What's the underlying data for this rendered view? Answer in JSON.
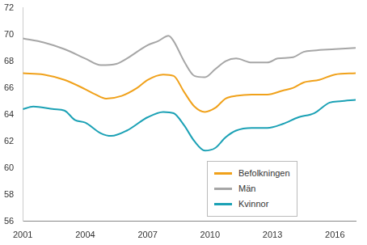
{
  "chart_data": {
    "type": "line",
    "xlim": [
      2001,
      2017
    ],
    "xticks": [
      2001,
      2004,
      2007,
      2010,
      2013,
      2016
    ],
    "ylim": [
      56,
      72
    ],
    "yticks": [
      56,
      58,
      60,
      62,
      64,
      66,
      68,
      70,
      72
    ],
    "grid": false,
    "legend": "lower right",
    "series": [
      {
        "name": "Befolkningen",
        "color": "#f0a11a",
        "x": [
          2001,
          2002,
          2003,
          2004,
          2004.5,
          2005,
          2005.75,
          2006.5,
          2007,
          2007.75,
          2008.25,
          2008.75,
          2009.25,
          2009.75,
          2010.25,
          2010.75,
          2011.25,
          2012,
          2012.75,
          2013.5,
          2014,
          2014.5,
          2015.25,
          2016,
          2017
        ],
        "values": [
          67.1,
          67.0,
          66.6,
          65.9,
          65.5,
          65.2,
          65.4,
          66.0,
          66.6,
          67.0,
          66.9,
          65.7,
          64.6,
          64.2,
          64.5,
          65.2,
          65.4,
          65.5,
          65.5,
          65.8,
          66.0,
          66.4,
          66.6,
          67.0,
          67.1
        ]
      },
      {
        "name": "Män",
        "color": "#a6a6a6",
        "x": [
          2001,
          2002,
          2003,
          2004,
          2004.75,
          2005.5,
          2006,
          2007,
          2007.5,
          2008,
          2008.25,
          2008.75,
          2009.25,
          2009.75,
          2010.25,
          2010.75,
          2011.25,
          2012,
          2012.75,
          2013.25,
          2014,
          2014.5,
          2015,
          2016,
          2017
        ],
        "values": [
          69.7,
          69.4,
          68.9,
          68.2,
          67.7,
          67.8,
          68.2,
          69.2,
          69.5,
          69.9,
          69.5,
          68.0,
          66.9,
          66.8,
          67.4,
          68.0,
          68.2,
          67.9,
          67.9,
          68.2,
          68.3,
          68.7,
          68.8,
          68.9,
          69.0
        ]
      },
      {
        "name": "Kvinnor",
        "color": "#1ba1b5",
        "x": [
          2001,
          2001.5,
          2002.5,
          2003,
          2003.5,
          2004,
          2004.75,
          2005.25,
          2006,
          2007,
          2007.75,
          2008.25,
          2008.75,
          2009.25,
          2009.75,
          2010.25,
          2010.75,
          2011.25,
          2012,
          2012.75,
          2013.5,
          2014.25,
          2015,
          2015.75,
          2016.25,
          2017
        ],
        "values": [
          64.4,
          64.6,
          64.4,
          64.3,
          63.6,
          63.4,
          62.6,
          62.4,
          62.8,
          63.8,
          64.2,
          64.1,
          63.2,
          62.0,
          61.3,
          61.5,
          62.3,
          62.8,
          63.0,
          63.0,
          63.3,
          63.8,
          64.1,
          64.9,
          65.0,
          65.1
        ]
      }
    ]
  }
}
